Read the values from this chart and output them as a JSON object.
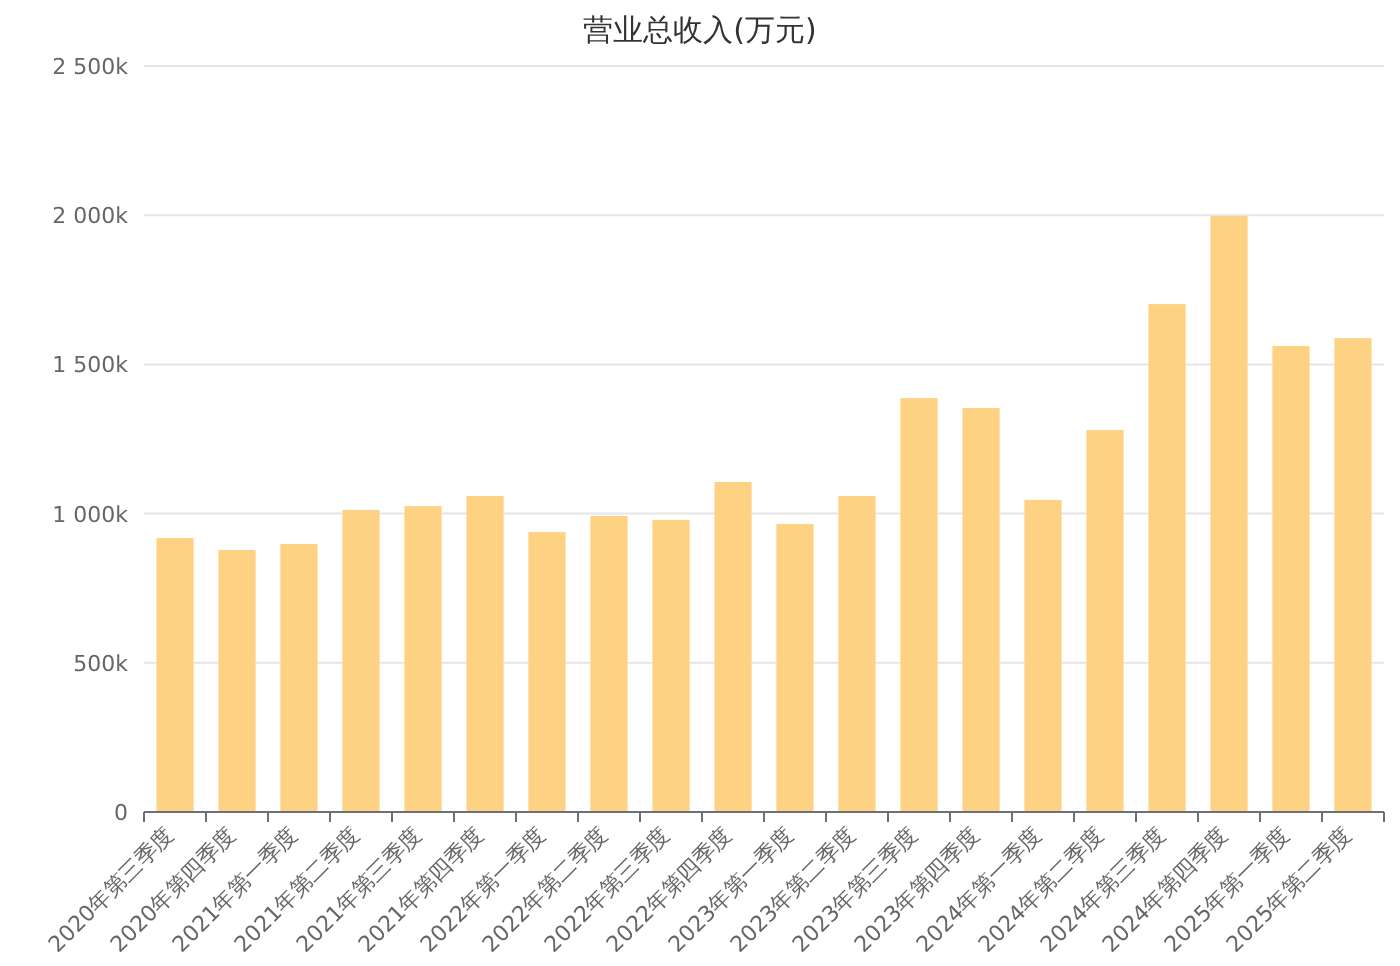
{
  "chart_data": {
    "type": "bar",
    "title": "营业总收入(万元)",
    "categories": [
      "2020年第三季度",
      "2020年第四季度",
      "2021年第一季度",
      "2021年第二季度",
      "2021年第三季度",
      "2021年第四季度",
      "2022年第一季度",
      "2022年第二季度",
      "2022年第三季度",
      "2022年第四季度",
      "2023年第一季度",
      "2023年第二季度",
      "2023年第三季度",
      "2023年第四季度",
      "2024年第一季度",
      "2024年第二季度",
      "2024年第三季度",
      "2024年第四季度",
      "2025年第一季度",
      "2025年第二季度"
    ],
    "values": [
      918,
      878,
      898,
      1012,
      1025,
      1059,
      938,
      992,
      979,
      1106,
      965,
      1059,
      1387,
      1354,
      1046,
      1280,
      1702,
      1997,
      1562,
      1588
    ],
    "color": "#fdd283",
    "ylim": [
      0,
      2500
    ],
    "yticks": [
      0,
      {
        "value": 500,
        "label": "500k"
      },
      {
        "value": 1000,
        "label": "1 000k"
      },
      {
        "value": 1500,
        "label": "1 500k"
      },
      {
        "value": 2000,
        "label": "2 000k"
      },
      {
        "value": 2500,
        "label": "2 500k"
      }
    ],
    "grid": "y"
  }
}
